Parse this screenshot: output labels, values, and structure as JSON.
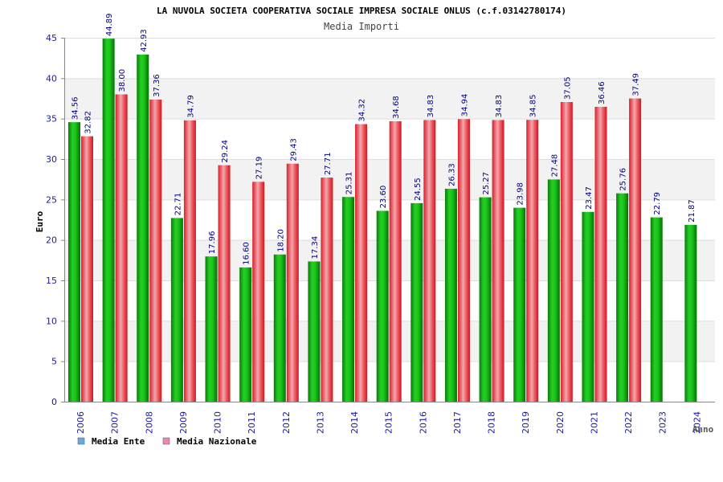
{
  "colors": {
    "ente": "#18c018",
    "ente_dark": "#078a07",
    "nazionale": "#e8303a",
    "nazionale_light": "#f3a0a6",
    "legend_ente": "#6aa6e8",
    "legend_nazionale": "#e88ab8",
    "axis_text": "#1a1aa8",
    "band": "#f2f2f2",
    "grid": "#dddddd"
  },
  "chart_data": {
    "type": "bar",
    "title": "LA NUVOLA SOCIETA COOPERATIVA SOCIALE IMPRESA SOCIALE ONLUS (c.f.03142780174)",
    "subtitle": "Media Importi",
    "xlabel": "Anno",
    "ylabel": "Euro",
    "ylim": [
      0,
      45
    ],
    "yticks": [
      "0",
      "5",
      "10",
      "15",
      "20",
      "25",
      "30",
      "35",
      "40",
      "45"
    ],
    "grid": true,
    "legend_position": "bottom-left",
    "categories": [
      "2006",
      "2007",
      "2008",
      "2009",
      "2010",
      "2011",
      "2012",
      "2013",
      "2014",
      "2015",
      "2016",
      "2017",
      "2018",
      "2019",
      "2020",
      "2021",
      "2022",
      "2023",
      "2024"
    ],
    "series": [
      {
        "name": "Media Ente",
        "values": [
          34.56,
          44.89,
          42.93,
          22.71,
          17.96,
          16.6,
          18.2,
          17.34,
          25.31,
          23.6,
          24.55,
          26.33,
          25.27,
          23.98,
          27.48,
          23.47,
          25.76,
          22.79,
          21.87
        ],
        "labels": [
          "34.56",
          "44.89",
          "42.93",
          "22.71",
          "17.96",
          "16.60",
          "18.20",
          "17.34",
          "25.31",
          "23.60",
          "24.55",
          "26.33",
          "25.27",
          "23.98",
          "27.48",
          "23.47",
          "25.76",
          "22.79",
          "21.87"
        ]
      },
      {
        "name": "Media Nazionale",
        "values": [
          32.82,
          38.0,
          37.36,
          34.79,
          29.24,
          27.19,
          29.43,
          27.71,
          34.32,
          34.68,
          34.83,
          34.94,
          34.83,
          34.85,
          37.05,
          36.46,
          37.49,
          null,
          null
        ],
        "labels": [
          "32.82",
          "38.00",
          "37.36",
          "34.79",
          "29.24",
          "27.19",
          "29.43",
          "27.71",
          "34.32",
          "34.68",
          "34.83",
          "34.94",
          "34.83",
          "34.85",
          "37.05",
          "36.46",
          "37.49",
          "",
          ""
        ]
      }
    ]
  }
}
